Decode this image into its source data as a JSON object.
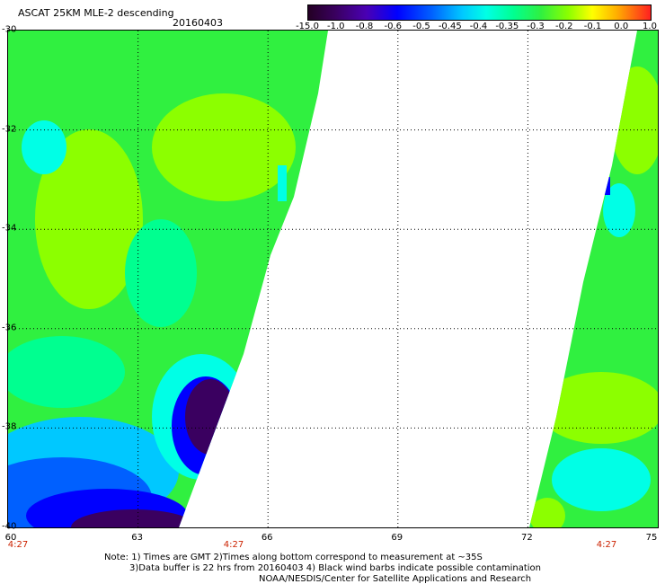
{
  "title": "ASCAT 25KM MLE-2 descending",
  "date": "20160403",
  "colorbar": {
    "ticks": [
      "-15.0",
      "-1.0",
      "-0.8",
      "-0.6",
      "-0.5",
      "-0.45",
      "-0.4",
      "-0.35",
      "-0.3",
      "-0.2",
      "-0.1",
      "0.0",
      "1.0"
    ]
  },
  "axes": {
    "lat_labels": [
      "-30",
      "-32",
      "-34",
      "-36",
      "-38",
      "-40"
    ],
    "lon_labels": [
      "60",
      "63",
      "66",
      "69",
      "72",
      "75"
    ],
    "time_labels": [
      "4:27",
      "4:27",
      "4:27"
    ]
  },
  "notes": {
    "line1": "Note: 1) Times are GMT 2)Times along bottom correspond to measurement at ~35S",
    "line2": "3)Data buffer is 22 hrs from 20160403 4) Black wind barbs indicate possible contamination",
    "line3": "NOAA/NESDIS/Center for Satellite Applications and Research"
  },
  "colors": {
    "green": "#30f040",
    "yellowgreen": "#8cff00",
    "cyan": "#00ffe6",
    "blue": "#0000ff",
    "purple": "#3a0060"
  }
}
